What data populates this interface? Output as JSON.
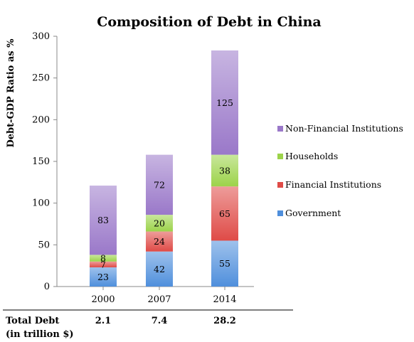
{
  "chart_data": {
    "type": "bar",
    "stacked": true,
    "title": "Composition of Debt in China",
    "ylabel": "Debt-GDP Ratio as %",
    "xlabel": "",
    "ylim": [
      0,
      300
    ],
    "yticks": [
      "0",
      "50",
      "100",
      "150",
      "200",
      "250",
      "300"
    ],
    "categories": [
      "2000",
      "2007",
      "2014"
    ],
    "series": [
      {
        "name": "Government",
        "color": "#4f8fdc",
        "values": [
          23,
          42,
          55
        ]
      },
      {
        "name": "Financial Institutions",
        "color": "#df4b47",
        "values": [
          7,
          24,
          65
        ]
      },
      {
        "name": "Households",
        "color": "#9cd34a",
        "values": [
          8,
          20,
          38
        ]
      },
      {
        "name": "Non-Financial Institutions",
        "color": "#9a78c9",
        "values": [
          83,
          72,
          125
        ]
      }
    ],
    "legend_placement": "right",
    "grid": false
  },
  "totals": {
    "label_line1": "Total Debt",
    "label_line2": "(in trillion $)",
    "values": [
      "2.1",
      "7.4",
      "28.2"
    ]
  }
}
